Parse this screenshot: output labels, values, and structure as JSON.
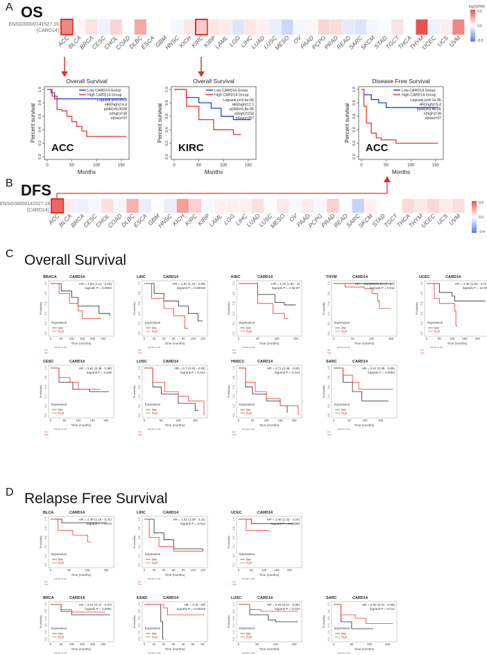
{
  "panels": {
    "a": "A",
    "b": "B",
    "c": "C",
    "d": "D"
  },
  "heatmap_os": {
    "title": "OS",
    "gene_id": "ENSG00000141527.16",
    "gene_name": "(CARD14)",
    "legend_title": "log10(HR)",
    "legend_ticks": [
      "0.5",
      "0.0",
      "-0.5"
    ],
    "max": 0.5,
    "highlight": [
      "ACC",
      "KIRC"
    ]
  },
  "heatmap_dfs": {
    "title": "DFS",
    "gene_id": "ENSG00000141527.16",
    "gene_name": "(CARD14)",
    "legend_ticks": [
      "0.4",
      "0.0",
      "-0.4"
    ],
    "max": 0.45,
    "highlight": [
      "ACC"
    ]
  },
  "colors": {
    "pos": "#e8534f",
    "neg": "#5b7be8",
    "low_gepia": "#1f3de8",
    "high_gepia": "#e8322a",
    "low_km": "#222222",
    "high_km": "#e8322a",
    "highlight": "#e03020"
  },
  "chart_data": [
    {
      "type": "heatmap",
      "name": "OS log10(HR)",
      "categories": [
        "ACC",
        "BLCA",
        "BRCA",
        "CESC",
        "CHOL",
        "COAD",
        "DLBC",
        "ESCA",
        "GBM",
        "HNSC",
        "KICH",
        "KIRC",
        "KIRP",
        "LAML",
        "LGG",
        "LIHC",
        "LUAD",
        "LUSC",
        "MESO",
        "OV",
        "PAAD",
        "PCPG",
        "PRAD",
        "READ",
        "SARC",
        "SKCM",
        "STAD",
        "TGCT",
        "THCA",
        "THYM",
        "UCEC",
        "UCS",
        "UVM"
      ],
      "values": [
        0.35,
        0.02,
        0.08,
        -0.05,
        0.12,
        0,
        0.25,
        0,
        0,
        -0.03,
        0.07,
        0.15,
        0.07,
        0.06,
        -0.1,
        0.07,
        0.04,
        -0.06,
        -0.15,
        -0.03,
        0.03,
        0.12,
        0.1,
        -0.08,
        -0.1,
        -0.03,
        -0.02,
        0.08,
        0,
        0.5,
        -0.05,
        0.05,
        0.35
      ]
    },
    {
      "type": "heatmap",
      "name": "DFS log10(HR)",
      "categories": [
        "ACC",
        "BLCA",
        "BRCA",
        "CESC",
        "CHOL",
        "COAD",
        "DLBC",
        "ESCA",
        "GBM",
        "HNSC",
        "KICH",
        "KIRC",
        "KIRP",
        "LAML",
        "LGG",
        "LIHC",
        "LUAD",
        "LUSC",
        "MESO",
        "OV",
        "PAAD",
        "PCPG",
        "PRAD",
        "READ",
        "SARC",
        "SKCM",
        "STAD",
        "TGCT",
        "THCA",
        "THYM",
        "UCEC",
        "UCS",
        "UVM"
      ],
      "values": [
        0.4,
        0.05,
        -0.05,
        -0.02,
        0.08,
        -0.03,
        0.2,
        -0.06,
        0.01,
        -0.06,
        0.25,
        0.12,
        -0.02,
        0.04,
        0.04,
        0.04,
        0.08,
        0,
        0.06,
        -0.02,
        0.05,
        -0.02,
        0.12,
        0,
        -0.15,
        0.04,
        0,
        0,
        0.1,
        0.06,
        0.1,
        0.05,
        0.08
      ]
    }
  ],
  "gepia_plots": [
    {
      "title": "Overall Survival",
      "label": "ACC",
      "ylabel": "Percent survival",
      "xlabel": "Months",
      "legend": [
        "Low CARD14 Group",
        "High CARD14 Group"
      ],
      "stats": [
        "Logrank p=0.0013",
        "HR(high)=4.4",
        "p(HR)=0.0028",
        "n(high)=38",
        "n(low)=37"
      ],
      "xmax": 160,
      "xticks": [
        "0",
        "50",
        "100",
        "150"
      ],
      "yticks": [
        "0.0",
        "0.2",
        "0.4",
        "0.6",
        "0.8",
        "1.0"
      ],
      "low": [
        [
          0,
          1
        ],
        [
          8,
          0.95
        ],
        [
          15,
          0.86
        ],
        [
          160,
          0.86
        ]
      ],
      "high": [
        [
          0,
          1
        ],
        [
          10,
          0.9
        ],
        [
          20,
          0.7
        ],
        [
          30,
          0.68
        ],
        [
          40,
          0.6
        ],
        [
          50,
          0.52
        ],
        [
          60,
          0.45
        ],
        [
          70,
          0.38
        ],
        [
          80,
          0.3
        ],
        [
          160,
          0.3
        ]
      ]
    },
    {
      "title": "Overall Survival",
      "label": "KIRC",
      "ylabel": "Percent survival",
      "xlabel": "Months",
      "legend": [
        "Low CARD14 Group",
        "High CARD14 Group"
      ],
      "stats": [
        "Logrank p=3.6e-06",
        "HR(high)=2.1",
        "p(HR)=5.8e-06",
        "n(high)=258",
        "n(low)=257"
      ],
      "xmax": 160,
      "xticks": [
        "0",
        "50",
        "100",
        "150"
      ],
      "yticks": [
        "0.0",
        "0.2",
        "0.4",
        "0.6",
        "0.8",
        "1.0"
      ],
      "low": [
        [
          0,
          1
        ],
        [
          25,
          0.88
        ],
        [
          50,
          0.8
        ],
        [
          75,
          0.72
        ],
        [
          95,
          0.6
        ],
        [
          120,
          0.55
        ],
        [
          155,
          0.55
        ]
      ],
      "high": [
        [
          0,
          1
        ],
        [
          25,
          0.75
        ],
        [
          50,
          0.55
        ],
        [
          80,
          0.4
        ],
        [
          120,
          0.33
        ],
        [
          135,
          0.33
        ]
      ]
    },
    {
      "title": "Disease Free Survival",
      "label": "ACC",
      "ylabel": "Percent survival",
      "xlabel": "Months",
      "legend": [
        "Low CARD14 Group",
        "High CARD14 Group"
      ],
      "stats": [
        "Logrank p=4.1e-06",
        "HR(high)=5.4",
        "p(HR)=3.4e-05",
        "n(high)=38",
        "n(low)=37"
      ],
      "xmax": 160,
      "xticks": [
        "0",
        "50",
        "100",
        "150"
      ],
      "yticks": [
        "0.0",
        "0.2",
        "0.4",
        "0.6",
        "0.8",
        "1.0"
      ],
      "low": [
        [
          0,
          1
        ],
        [
          5,
          0.92
        ],
        [
          20,
          0.85
        ],
        [
          35,
          0.8
        ],
        [
          50,
          0.73
        ],
        [
          155,
          0.73
        ]
      ],
      "high": [
        [
          0,
          1
        ],
        [
          5,
          0.75
        ],
        [
          10,
          0.5
        ],
        [
          20,
          0.35
        ],
        [
          30,
          0.28
        ],
        [
          40,
          0.25
        ],
        [
          70,
          0.2
        ],
        [
          155,
          0.2
        ]
      ]
    }
  ],
  "sections": {
    "c": "Overall Survival",
    "d": "Relapse Free Survival"
  },
  "km_common": {
    "gene": "CARD14",
    "ylabel": "Probability",
    "xlabel": "Time (months)",
    "legend_title": "Expression",
    "legend": [
      "low",
      "high"
    ],
    "risk_title": "Number at risk",
    "risk_rows": [
      "low",
      "high"
    ],
    "yticks": [
      "0.0",
      "0.2",
      "0.4",
      "0.6",
      "0.8",
      "1.0"
    ]
  },
  "km_c": [
    {
      "cancer": "BRACA",
      "hr": "HR = 1.54 (1.11 - 2.15)",
      "p": "logrank P = 0.0094",
      "xmax": 290,
      "xticks": [
        0,
        50,
        100,
        150,
        200,
        250
      ],
      "low": [
        [
          0,
          1
        ],
        [
          50,
          0.85
        ],
        [
          100,
          0.72
        ],
        [
          130,
          0.55
        ],
        [
          180,
          0.55
        ],
        [
          230,
          0.4
        ],
        [
          280,
          0.35
        ]
      ],
      "high": [
        [
          0,
          1
        ],
        [
          40,
          0.8
        ],
        [
          90,
          0.6
        ],
        [
          130,
          0.45
        ],
        [
          150,
          0.3
        ],
        [
          240,
          0.3
        ]
      ]
    },
    {
      "cancer": "LIHC",
      "hr": "HR = 1.87 (1.32 - 2.65)",
      "p": "logrank P = 0.00038",
      "xmax": 125,
      "xticks": [
        0,
        20,
        40,
        60,
        80,
        100,
        120
      ],
      "low": [
        [
          0,
          1
        ],
        [
          20,
          0.8
        ],
        [
          40,
          0.65
        ],
        [
          70,
          0.55
        ],
        [
          90,
          0.4
        ],
        [
          110,
          0.25
        ],
        [
          120,
          0.25
        ]
      ],
      "high": [
        [
          0,
          1
        ],
        [
          15,
          0.7
        ],
        [
          40,
          0.5
        ],
        [
          60,
          0.35
        ],
        [
          82,
          0.35
        ],
        [
          83,
          0.1
        ],
        [
          90,
          0.1
        ]
      ]
    },
    {
      "cancer": "KIRC",
      "hr": "HR = 2.21 (1.62 - 3)",
      "p": "logrank P = 2.3e-07",
      "xmax": 160,
      "xticks": [
        0,
        50,
        100,
        150
      ],
      "low": [
        [
          0,
          1
        ],
        [
          50,
          0.78
        ],
        [
          95,
          0.62
        ],
        [
          120,
          0.57
        ],
        [
          150,
          0.57
        ]
      ],
      "high": [
        [
          0,
          1
        ],
        [
          50,
          0.6
        ],
        [
          90,
          0.4
        ],
        [
          120,
          0.3
        ],
        [
          130,
          0.3
        ]
      ]
    },
    {
      "cancer": "THYM",
      "hr": "HR = 452598062.93 (0 - Inf)",
      "p": "logrank P = 0.011",
      "xmax": 160,
      "xticks": [
        0,
        50,
        100,
        150
      ],
      "low": [
        [
          0,
          1
        ],
        [
          150,
          0.98
        ]
      ],
      "high": [
        [
          0,
          1
        ],
        [
          30,
          0.93
        ],
        [
          80,
          0.9
        ],
        [
          100,
          0.8
        ],
        [
          115,
          0.65
        ],
        [
          120,
          0.5
        ],
        [
          150,
          0.5
        ]
      ]
    },
    {
      "cancer": "UCEC",
      "hr": "HR = 2.46 (1.63 - 3.72)",
      "p": "logrank P = 1e-05",
      "xmax": 240,
      "xticks": [
        0,
        50,
        100,
        150,
        200
      ],
      "low": [
        [
          0,
          1
        ],
        [
          50,
          0.82
        ],
        [
          100,
          0.75
        ],
        [
          110,
          0.65
        ],
        [
          230,
          0.65
        ]
      ],
      "high": [
        [
          0,
          1
        ],
        [
          30,
          0.7
        ],
        [
          50,
          0.6
        ],
        [
          100,
          0.6
        ],
        [
          110,
          0.45
        ],
        [
          115,
          0.15
        ],
        [
          120,
          0.15
        ]
      ]
    },
    {
      "cancer": "CESC",
      "hr": "HR = 0.61 (0.38 - 0.98)",
      "p": "logrank P = 0.039",
      "xmax": 220,
      "xticks": [
        0,
        50,
        100,
        150,
        200
      ],
      "low": [
        [
          0,
          1
        ],
        [
          30,
          0.7
        ],
        [
          80,
          0.55
        ],
        [
          140,
          0.5
        ],
        [
          210,
          0.5
        ]
      ],
      "high": [
        [
          0,
          1
        ],
        [
          30,
          0.8
        ],
        [
          70,
          0.7
        ],
        [
          100,
          0.55
        ],
        [
          180,
          0.55
        ]
      ]
    },
    {
      "cancer": "LUSC",
      "hr": "HR = 0.7 (0.53 - 0.93)",
      "p": "logrank P = 0.012",
      "xmax": 180,
      "xticks": [
        0,
        50,
        100,
        150
      ],
      "low": [
        [
          0,
          1
        ],
        [
          25,
          0.6
        ],
        [
          50,
          0.45
        ],
        [
          100,
          0.25
        ],
        [
          150,
          0.1
        ],
        [
          160,
          0.1
        ]
      ],
      "high": [
        [
          0,
          1
        ],
        [
          25,
          0.7
        ],
        [
          60,
          0.5
        ],
        [
          100,
          0.4
        ],
        [
          130,
          0.3
        ],
        [
          175,
          0.3
        ],
        [
          176,
          0
        ]
      ]
    },
    {
      "cancer": "HNSCC",
      "hr": "HR = 0.71 (0.55 - 0.93)",
      "p": "logrank P = 0.014",
      "xmax": 220,
      "xticks": [
        0,
        50,
        100,
        150,
        200
      ],
      "low": [
        [
          0,
          1
        ],
        [
          25,
          0.6
        ],
        [
          50,
          0.45
        ],
        [
          100,
          0.3
        ],
        [
          150,
          0.2
        ],
        [
          175,
          0.05
        ]
      ],
      "high": [
        [
          0,
          1
        ],
        [
          25,
          0.7
        ],
        [
          60,
          0.5
        ],
        [
          100,
          0.35
        ],
        [
          150,
          0.2
        ],
        [
          214,
          0.15
        ],
        [
          215,
          0
        ]
      ]
    },
    {
      "cancer": "SARC",
      "hr": "HR = 0.57 (0.38 - 0.85)",
      "p": "logrank P = 0.0052",
      "xmax": 195,
      "xticks": [
        0,
        50,
        100,
        150
      ],
      "low": [
        [
          0,
          1
        ],
        [
          30,
          0.7
        ],
        [
          60,
          0.5
        ],
        [
          90,
          0.3
        ],
        [
          175,
          0.3
        ]
      ],
      "high": [
        [
          0,
          1
        ],
        [
          30,
          0.85
        ],
        [
          60,
          0.7
        ],
        [
          80,
          0.55
        ],
        [
          190,
          0.55
        ]
      ]
    }
  ],
  "km_d": [
    {
      "cancer": "BLCA",
      "hr": "HR = 2.48 (1.18 - 5.21)",
      "p": "logrank P = 0.014",
      "xmax": 165,
      "xticks": [
        0,
        50,
        100,
        150
      ],
      "low": [
        [
          0,
          1
        ],
        [
          30,
          0.92
        ],
        [
          150,
          0.9
        ]
      ],
      "high": [
        [
          0,
          1
        ],
        [
          20,
          0.75
        ],
        [
          60,
          0.65
        ],
        [
          100,
          0.5
        ],
        [
          110,
          0.5
        ]
      ]
    },
    {
      "cancer": "LIHC",
      "hr": "HR = 1.52 (1.09 - 2.11)",
      "p": "logrank P = 0.012",
      "xmax": 125,
      "xticks": [
        0,
        20,
        40,
        60,
        80,
        100,
        120
      ],
      "low": [
        [
          0,
          1
        ],
        [
          20,
          0.7
        ],
        [
          40,
          0.55
        ],
        [
          60,
          0.35
        ],
        [
          120,
          0.3
        ]
      ],
      "high": [
        [
          0,
          1
        ],
        [
          10,
          0.6
        ],
        [
          30,
          0.4
        ],
        [
          60,
          0.3
        ],
        [
          120,
          0.3
        ]
      ]
    },
    {
      "cancer": "UCEC",
      "hr": "HR = 2.45 (1.42 - 4.22)",
      "p": "logrank P = 0.00088",
      "xmax": 240,
      "xticks": [
        0,
        50,
        100,
        150,
        200
      ],
      "low": [
        [
          0,
          1
        ],
        [
          50,
          0.9
        ],
        [
          210,
          0.88
        ]
      ],
      "high": [
        [
          0,
          1
        ],
        [
          30,
          0.75
        ],
        [
          120,
          0.72
        ]
      ]
    },
    {
      "cancer": "BRCA",
      "hr": "HR = 0.57 (0.37 - 0.87)",
      "p": "logrank P = 0.0091",
      "xmax": 290,
      "xticks": [
        0,
        50,
        100,
        150,
        200,
        250
      ],
      "low": [
        [
          0,
          1
        ],
        [
          50,
          0.8
        ],
        [
          100,
          0.7
        ],
        [
          280,
          0.7
        ]
      ],
      "high": [
        [
          0,
          1
        ],
        [
          50,
          0.85
        ],
        [
          100,
          0.78
        ],
        [
          260,
          0.78
        ]
      ]
    },
    {
      "cancer": "ESAD",
      "hr": "HR = 0 (0 - Inf)",
      "p": "logrank P = 0.00029",
      "xmax": 63,
      "xticks": [
        0,
        10,
        20,
        30,
        40,
        50,
        60
      ],
      "low": [
        [
          0,
          1
        ],
        [
          17,
          0.5
        ],
        [
          19,
          0
        ],
        [
          20,
          0
        ]
      ],
      "high": [
        [
          0,
          1
        ],
        [
          20,
          0.9
        ],
        [
          24,
          0.7
        ],
        [
          62,
          0.7
        ]
      ]
    },
    {
      "cancer": "LUSC",
      "hr": "HR = 0.51 (0.27 - 0.96)",
      "p": "logrank P = 0.034",
      "xmax": 165,
      "xticks": [
        0,
        50,
        100,
        150
      ],
      "low": [
        [
          0,
          1
        ],
        [
          30,
          0.7
        ],
        [
          80,
          0.55
        ],
        [
          100,
          0.5
        ],
        [
          160,
          0.5
        ]
      ],
      "high": [
        [
          0,
          1
        ],
        [
          30,
          0.85
        ],
        [
          60,
          0.8
        ],
        [
          160,
          0.8
        ]
      ]
    },
    {
      "cancer": "SARC",
      "hr": "HR = 0.52 (0.31 - 0.88)",
      "p": "logrank P = 0.012",
      "xmax": 170,
      "xticks": [
        0,
        50,
        100,
        150
      ],
      "low": [
        [
          0,
          1
        ],
        [
          20,
          0.5
        ],
        [
          50,
          0.3
        ],
        [
          110,
          0.3
        ]
      ],
      "high": [
        [
          0,
          1
        ],
        [
          20,
          0.7
        ],
        [
          60,
          0.6
        ],
        [
          90,
          0.45
        ],
        [
          165,
          0.45
        ]
      ]
    }
  ]
}
